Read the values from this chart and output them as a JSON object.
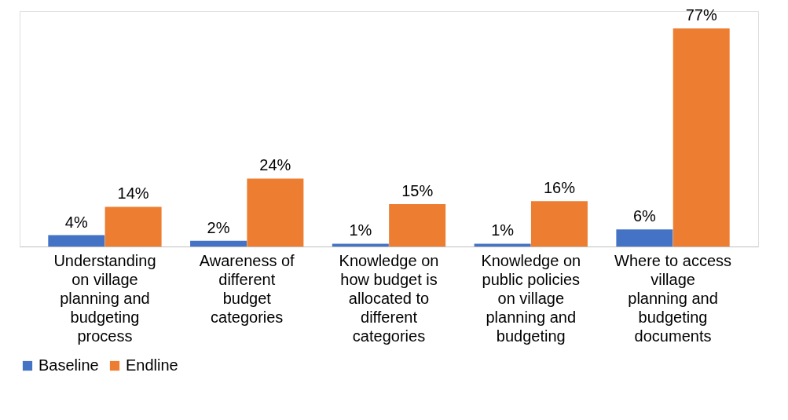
{
  "chart_data": {
    "type": "bar",
    "categories": [
      "Understanding on village planning and budgeting process",
      "Awareness of different budget categories",
      "Knowledge on how budget is allocated to different categories",
      "Knowledge on public policies on village planning and budgeting",
      "Where to access village planning and budgeting documents"
    ],
    "series": [
      {
        "name": "Baseline",
        "color": "#4472c4",
        "values": [
          4,
          2,
          1,
          1,
          6
        ],
        "value_labels": [
          "4%",
          "2%",
          "1%",
          "1%",
          "6%"
        ]
      },
      {
        "name": "Endline",
        "color": "#ed7d31",
        "values": [
          14,
          24,
          15,
          16,
          77
        ],
        "value_labels": [
          "14%",
          "24%",
          "15%",
          "16%",
          "77%"
        ]
      }
    ],
    "legend": "bottom",
    "grid": false
  }
}
